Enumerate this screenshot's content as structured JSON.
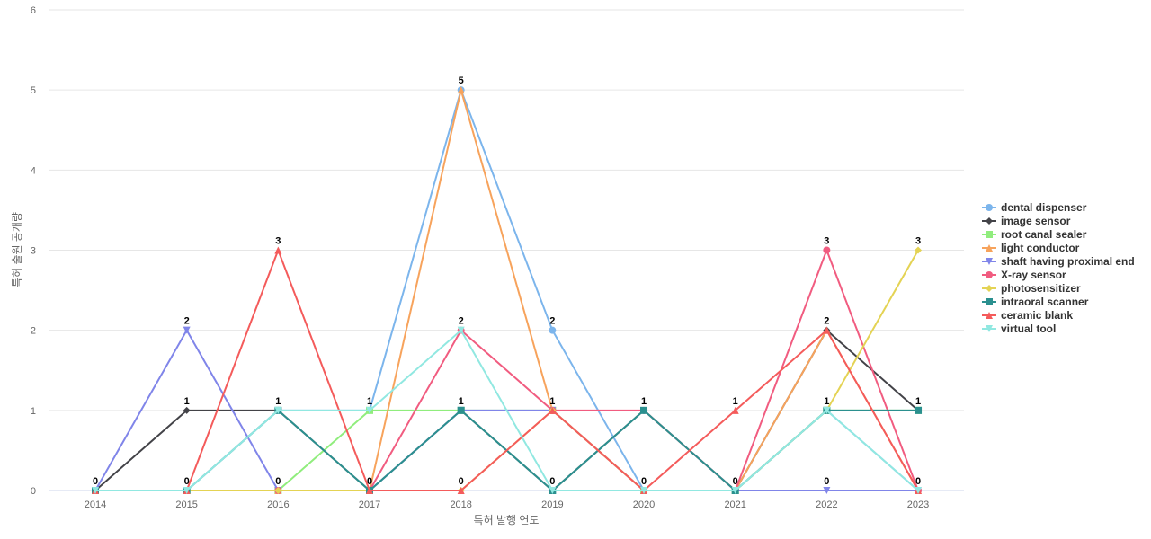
{
  "chart_data": {
    "type": "line",
    "title": "",
    "xlabel": "특허 발행 연도",
    "ylabel": "특허 출원 공개량",
    "x": [
      "2014",
      "2015",
      "2016",
      "2017",
      "2018",
      "2019",
      "2020",
      "2021",
      "2022",
      "2023"
    ],
    "ylim": [
      0,
      6
    ],
    "yticks": [
      0,
      1,
      2,
      3,
      4,
      5,
      6
    ],
    "grid": true,
    "legend_position": "right",
    "series": [
      {
        "name": "dental dispenser",
        "color": "#7cb5ec",
        "marker": "circle",
        "values": [
          0,
          0,
          1,
          1,
          5,
          2,
          0,
          0,
          1,
          0
        ]
      },
      {
        "name": "image sensor",
        "color": "#434348",
        "marker": "diamond",
        "values": [
          0,
          1,
          1,
          0,
          1,
          0,
          1,
          0,
          2,
          1
        ]
      },
      {
        "name": "root canal sealer",
        "color": "#90ed7d",
        "marker": "square",
        "values": [
          0,
          0,
          0,
          1,
          1,
          1,
          0,
          0,
          1,
          1
        ]
      },
      {
        "name": "light conductor",
        "color": "#f7a35c",
        "marker": "triangle",
        "values": [
          0,
          0,
          0,
          0,
          5,
          1,
          0,
          0,
          2,
          0
        ]
      },
      {
        "name": "shaft having proximal end",
        "color": "#8085e9",
        "marker": "triangle-down",
        "values": [
          0,
          2,
          0,
          0,
          1,
          1,
          0,
          0,
          0,
          0
        ]
      },
      {
        "name": "X-ray sensor",
        "color": "#f15c80",
        "marker": "circle",
        "values": [
          0,
          0,
          0,
          0,
          2,
          1,
          1,
          0,
          3,
          0
        ]
      },
      {
        "name": "photosensitizer",
        "color": "#e4d354",
        "marker": "diamond",
        "values": [
          0,
          0,
          0,
          0,
          0,
          1,
          0,
          0,
          1,
          3
        ]
      },
      {
        "name": "intraoral scanner",
        "color": "#2b908f",
        "marker": "square",
        "values": [
          0,
          0,
          1,
          0,
          1,
          0,
          1,
          0,
          1,
          1
        ]
      },
      {
        "name": "ceramic blank",
        "color": "#f45b5b",
        "marker": "triangle",
        "values": [
          0,
          0,
          3,
          0,
          0,
          1,
          0,
          1,
          2,
          0
        ]
      },
      {
        "name": "virtual tool",
        "color": "#91e8e1",
        "marker": "triangle-down",
        "values": [
          0,
          0,
          1,
          1,
          2,
          0,
          0,
          0,
          1,
          0
        ]
      }
    ],
    "data_labels": [
      {
        "x": "2014",
        "y": 0,
        "text": "0"
      },
      {
        "x": "2015",
        "y": 2,
        "text": "2"
      },
      {
        "x": "2015",
        "y": 1,
        "text": "1"
      },
      {
        "x": "2015",
        "y": 0,
        "text": "0"
      },
      {
        "x": "2016",
        "y": 3,
        "text": "3"
      },
      {
        "x": "2016",
        "y": 1,
        "text": "1"
      },
      {
        "x": "2016",
        "y": 0,
        "text": "0"
      },
      {
        "x": "2017",
        "y": 1,
        "text": "1"
      },
      {
        "x": "2017",
        "y": 0,
        "text": "0"
      },
      {
        "x": "2018",
        "y": 5,
        "text": "5"
      },
      {
        "x": "2018",
        "y": 2,
        "text": "2"
      },
      {
        "x": "2018",
        "y": 1,
        "text": "1"
      },
      {
        "x": "2018",
        "y": 0,
        "text": "0"
      },
      {
        "x": "2019",
        "y": 2,
        "text": "2"
      },
      {
        "x": "2019",
        "y": 1,
        "text": "1"
      },
      {
        "x": "2019",
        "y": 0,
        "text": "0"
      },
      {
        "x": "2020",
        "y": 1,
        "text": "1"
      },
      {
        "x": "2020",
        "y": 0,
        "text": "0"
      },
      {
        "x": "2021",
        "y": 1,
        "text": "1"
      },
      {
        "x": "2021",
        "y": 0,
        "text": "0"
      },
      {
        "x": "2022",
        "y": 3,
        "text": "3"
      },
      {
        "x": "2022",
        "y": 2,
        "text": "2"
      },
      {
        "x": "2022",
        "y": 1,
        "text": "1"
      },
      {
        "x": "2022",
        "y": 0,
        "text": "0"
      },
      {
        "x": "2023",
        "y": 3,
        "text": "3"
      },
      {
        "x": "2023",
        "y": 1,
        "text": "1"
      },
      {
        "x": "2023",
        "y": 0,
        "text": "0"
      }
    ]
  }
}
